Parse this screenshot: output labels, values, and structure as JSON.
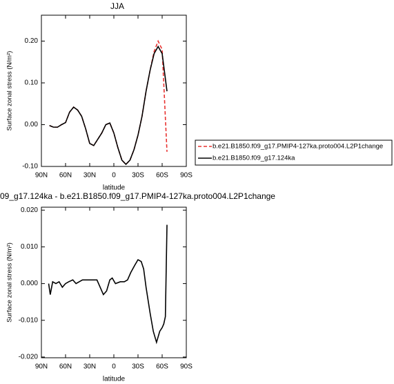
{
  "chart_data": [
    {
      "type": "line",
      "title": "JJA",
      "x_label": "latitude",
      "y_label": "Surface zonal stress (N/m²)",
      "x": [
        80,
        75,
        70,
        65,
        60,
        55,
        50,
        45,
        40,
        35,
        30,
        25,
        20,
        15,
        10,
        5,
        0,
        -5,
        -10,
        -15,
        -20,
        -25,
        -30,
        -35,
        -40,
        -45,
        -50,
        -55,
        -60,
        -66
      ],
      "series": [
        {
          "name": "b.e21.B1850.f09_g17.PMIP4-127ka.proto004.L2P1change",
          "color": "#e8312f",
          "line_style": "dashed",
          "values": [
            -0.002,
            -0.006,
            -0.006,
            0.0,
            0.005,
            0.03,
            0.042,
            0.035,
            0.02,
            -0.01,
            -0.045,
            -0.05,
            -0.035,
            -0.02,
            0.0,
            0.004,
            -0.02,
            -0.055,
            -0.085,
            -0.095,
            -0.085,
            -0.06,
            -0.025,
            0.02,
            0.08,
            0.13,
            0.175,
            0.2,
            0.18,
            -0.065
          ]
        },
        {
          "name": "b.e21.B1850.f09_g17.124ka",
          "color": "#000000",
          "line_style": "solid",
          "values": [
            -0.002,
            -0.006,
            -0.006,
            0.0,
            0.005,
            0.03,
            0.042,
            0.035,
            0.02,
            -0.01,
            -0.045,
            -0.05,
            -0.035,
            -0.02,
            0.0,
            0.004,
            -0.02,
            -0.055,
            -0.085,
            -0.095,
            -0.085,
            -0.06,
            -0.025,
            0.02,
            0.08,
            0.13,
            0.17,
            0.187,
            0.17,
            0.08
          ]
        }
      ],
      "xlim": [
        90,
        -90
      ],
      "xticks": [
        {
          "value": 90,
          "label": "90N"
        },
        {
          "value": 60,
          "label": "60N"
        },
        {
          "value": 30,
          "label": "30N"
        },
        0,
        {
          "value": -30,
          "label": "30S"
        },
        {
          "value": -60,
          "label": "60S"
        },
        {
          "value": -90,
          "label": "90S"
        }
      ],
      "ylim": [
        -0.1,
        0.262
      ],
      "yticks": [
        {
          "value": -0.1,
          "label": "-0.10"
        },
        {
          "value": 0,
          "label": "0.00"
        },
        {
          "value": 0.1,
          "label": "0.10"
        },
        {
          "value": 0.2,
          "label": "0.20"
        }
      ],
      "legend": "right"
    },
    {
      "type": "line",
      "title": "09_g17.124ka - b.e21.B1850.f09_g17.PMIP4-127ka.proto004.L2P1change",
      "x_label": "latitude",
      "y_label": "Surface zonal stress (N/m²)",
      "x": [
        81,
        79,
        76,
        72,
        68,
        64,
        60,
        56,
        51,
        47,
        43,
        39,
        30,
        21,
        17,
        13,
        9,
        5,
        2,
        -2,
        -8,
        -13,
        -17,
        -21,
        -26,
        -30,
        -34,
        -37,
        -40,
        -45,
        -49,
        -53,
        -57,
        -60,
        -62,
        -64,
        -66
      ],
      "series": [
        {
          "color": "#000000",
          "line_style": "solid",
          "values": [
            0,
            -0.003,
            0.0005,
            0,
            0.0005,
            -0.001,
            0,
            0.0005,
            0.001,
            0,
            0.0005,
            0.001,
            0.001,
            0.001,
            -0.001,
            -0.003,
            -0.002,
            0.001,
            0.0015,
            0,
            0.0005,
            0.0005,
            0.001,
            0.003,
            0.005,
            0.0065,
            0.006,
            0.004,
            -0.001,
            -0.008,
            -0.013,
            -0.016,
            -0.013,
            -0.012,
            -0.011,
            -0.009,
            0.016
          ]
        }
      ],
      "xlim": [
        90,
        -90
      ],
      "xticks": [
        {
          "value": 90,
          "label": "90N"
        },
        {
          "value": 60,
          "label": "60N"
        },
        {
          "value": 30,
          "label": "30N"
        },
        0,
        {
          "value": -30,
          "label": "30S"
        },
        {
          "value": -60,
          "label": "60S"
        },
        {
          "value": -90,
          "label": "90S"
        }
      ],
      "ylim": [
        -0.0202,
        0.0208
      ],
      "yticks": [
        {
          "value": -0.02,
          "label": "-0.020"
        },
        {
          "value": -0.01,
          "label": "-0.010"
        },
        {
          "value": 0,
          "label": "0.000"
        },
        {
          "value": 0.01,
          "label": "0.010"
        },
        {
          "value": 0.02,
          "label": "0.020"
        }
      ]
    }
  ]
}
